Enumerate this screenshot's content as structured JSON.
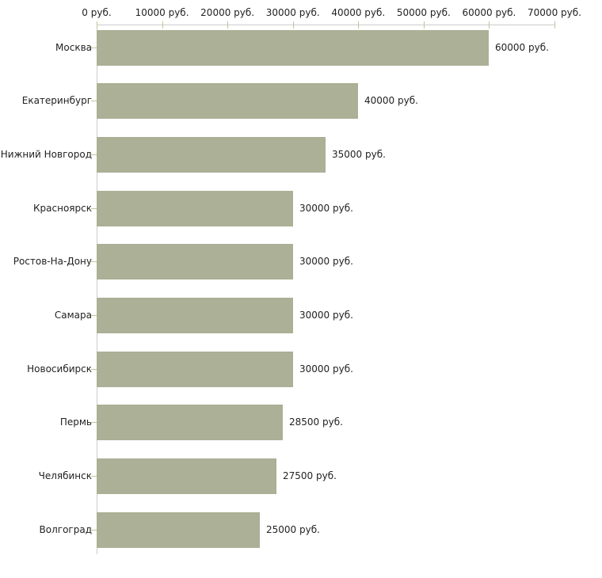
{
  "chart_data": {
    "type": "bar",
    "orientation": "horizontal",
    "title": "",
    "xlabel": "",
    "ylabel": "",
    "unit": "руб.",
    "xlim": [
      0,
      70000
    ],
    "grid": false,
    "legend": "none",
    "x_tick_labels": [
      "0 руб.",
      "10000 руб.",
      "20000 руб.",
      "30000 руб.",
      "40000 руб.",
      "50000 руб.",
      "60000 руб.",
      "70000 руб."
    ],
    "categories": [
      "Москва",
      "Екатеринбург",
      "Нижний Новгород",
      "Красноярск",
      "Ростов-На-Дону",
      "Самара",
      "Новосибирск",
      "Пермь",
      "Челябинск",
      "Волгоград"
    ],
    "values": [
      60000,
      40000,
      35000,
      30000,
      30000,
      30000,
      30000,
      28500,
      27500,
      25000
    ],
    "value_labels": [
      "60000 руб.",
      "40000 руб.",
      "35000 руб.",
      "30000 руб.",
      "30000 руб.",
      "30000 руб.",
      "30000 руб.",
      "28500 руб.",
      "27500 руб.",
      "25000 руб."
    ],
    "colors": {
      "bar_fill": "#abb096",
      "axis_line": "#cccccc",
      "tick_mark": "#c3c39b",
      "text": "#222222"
    }
  }
}
